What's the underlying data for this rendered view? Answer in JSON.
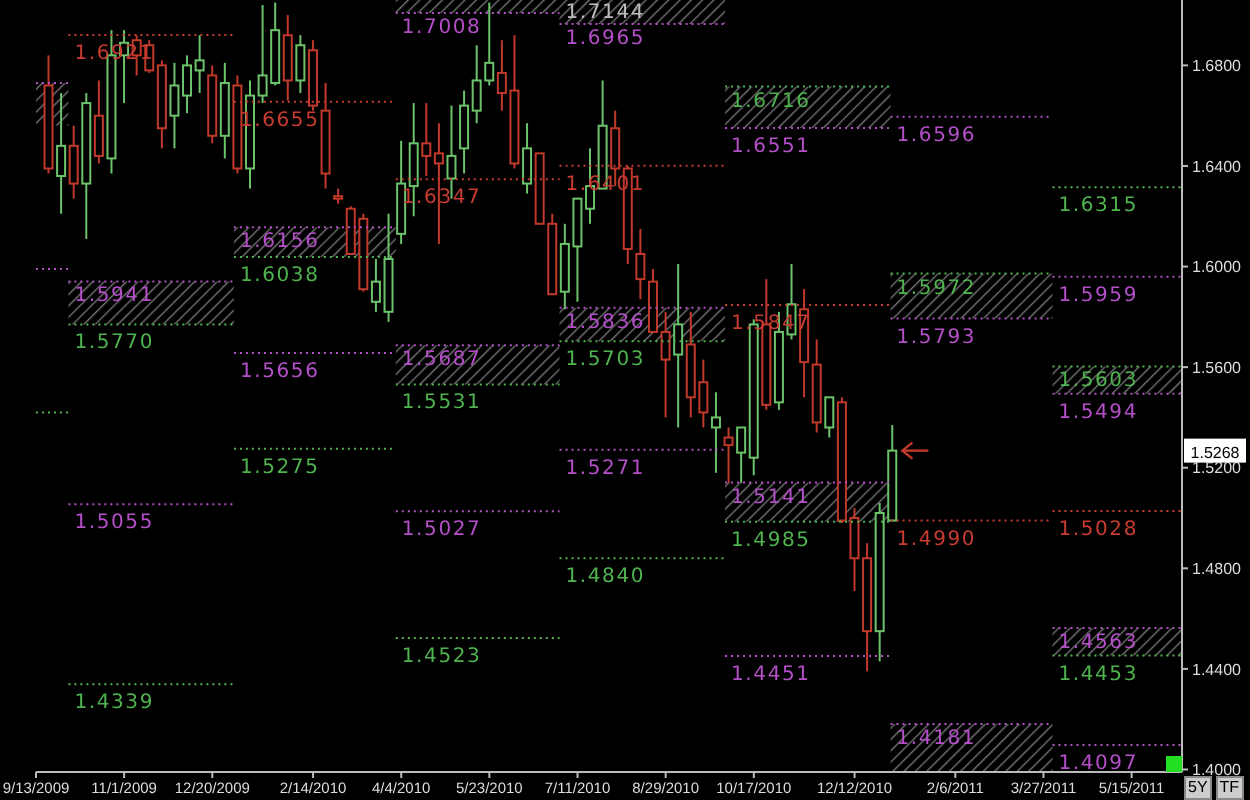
{
  "chart_data": {
    "type": "candlestick",
    "xlim": [
      "2009-09-13",
      "2011-06-12"
    ],
    "ylim": [
      1.399,
      1.706
    ],
    "yticks": [
      {
        "value": 1.4,
        "label": "1.4000"
      },
      {
        "value": 1.44,
        "label": "1.4400"
      },
      {
        "value": 1.48,
        "label": "1.4800"
      },
      {
        "value": 1.52,
        "label": "1.5200"
      },
      {
        "value": 1.56,
        "label": "1.5600"
      },
      {
        "value": 1.6,
        "label": "1.6000"
      },
      {
        "value": 1.64,
        "label": "1.6400"
      },
      {
        "value": 1.68,
        "label": "1.6800"
      }
    ],
    "xticks": [
      {
        "value": "2009-09-13",
        "label": "9/13/2009"
      },
      {
        "value": "2009-11-01",
        "label": "11/1/2009"
      },
      {
        "value": "2009-12-20",
        "label": "12/20/2009"
      },
      {
        "value": "2010-02-14",
        "label": "2/14/2010"
      },
      {
        "value": "2010-04-04",
        "label": "4/4/2010"
      },
      {
        "value": "2010-05-23",
        "label": "5/23/2010"
      },
      {
        "value": "2010-07-11",
        "label": "7/11/2010"
      },
      {
        "value": "2010-08-29",
        "label": "8/29/2010"
      },
      {
        "value": "2010-10-17",
        "label": "10/17/2010"
      },
      {
        "value": "2010-12-12",
        "label": "12/12/2010"
      },
      {
        "value": "2011-02-06",
        "label": "2/6/2011"
      },
      {
        "value": "2011-03-27",
        "label": "3/27/2011"
      },
      {
        "value": "2011-05-15",
        "label": "5/15/2011"
      }
    ],
    "grid": false,
    "annotations": [
      {
        "text": "1.5268",
        "y": 1.5268
      },
      {
        "text": "1.7144",
        "x": "2010-07-01",
        "y": 1.706
      },
      "5Y",
      "TF"
    ],
    "series": [
      {
        "type": "line",
        "x": [
          "2009-09-13",
          "2009-10-01"
        ],
        "values": [
          1.673,
          1.673
        ],
        "lower": [
          1.656,
          1.656
        ],
        "upper": [
          1.673,
          1.673
        ],
        "color": "#b44fc8",
        "line_style": "dotted"
      },
      {
        "type": "line",
        "x": [
          "2009-09-13",
          "2009-10-01"
        ],
        "values": [
          1.599,
          1.599
        ],
        "color": "#b44fc8",
        "line_style": "dotted"
      },
      {
        "type": "line",
        "x": [
          "2009-09-13",
          "2009-10-01"
        ],
        "values": [
          1.542,
          1.542
        ],
        "color": "#4fb44f",
        "line_style": "dotted"
      },
      {
        "type": "line",
        "name": "1.6921",
        "x": [
          "2009-10-01",
          "2010-01-01"
        ],
        "values": [
          1.6921,
          1.6921
        ],
        "color": "#c83c32",
        "line_style": "dotted"
      },
      {
        "type": "line",
        "name": "1.5941",
        "x": [
          "2009-10-01",
          "2010-01-01"
        ],
        "values": [
          1.5941,
          1.5941
        ],
        "lower": [
          1.577,
          1.577
        ],
        "upper": [
          1.5941,
          1.5941
        ],
        "color": "#b44fc8",
        "line_style": "dotted"
      },
      {
        "type": "line",
        "name": "1.5770",
        "x": [
          "2009-10-01",
          "2010-01-01"
        ],
        "values": [
          1.577,
          1.577
        ],
        "color": "#4fb44f",
        "line_style": "dotted"
      },
      {
        "type": "line",
        "name": "1.5055",
        "x": [
          "2009-10-01",
          "2010-01-01"
        ],
        "values": [
          1.5055,
          1.5055
        ],
        "color": "#b44fc8",
        "line_style": "dotted"
      },
      {
        "type": "line",
        "name": "1.4339",
        "x": [
          "2009-10-01",
          "2010-01-01"
        ],
        "values": [
          1.4339,
          1.4339
        ],
        "color": "#4fb44f",
        "line_style": "dotted"
      },
      {
        "type": "line",
        "name": "1.6655",
        "x": [
          "2010-01-01",
          "2010-04-01"
        ],
        "values": [
          1.6655,
          1.6655
        ],
        "color": "#c83c32",
        "line_style": "dotted"
      },
      {
        "type": "line",
        "name": "1.6156",
        "x": [
          "2010-01-01",
          "2010-04-01"
        ],
        "values": [
          1.6156,
          1.6156
        ],
        "lower": [
          1.6038,
          1.6038
        ],
        "upper": [
          1.6156,
          1.6156
        ],
        "color": "#b44fc8",
        "line_style": "dotted"
      },
      {
        "type": "line",
        "name": "1.6038",
        "x": [
          "2010-01-01",
          "2010-04-01"
        ],
        "values": [
          1.6038,
          1.6038
        ],
        "color": "#4fb44f",
        "line_style": "dotted"
      },
      {
        "type": "line",
        "name": "1.5656",
        "x": [
          "2010-01-01",
          "2010-04-01"
        ],
        "values": [
          1.5656,
          1.5656
        ],
        "color": "#b44fc8",
        "line_style": "dotted"
      },
      {
        "type": "line",
        "name": "1.5275",
        "x": [
          "2010-01-01",
          "2010-04-01"
        ],
        "values": [
          1.5275,
          1.5275
        ],
        "color": "#4fb44f",
        "line_style": "dotted"
      },
      {
        "type": "line",
        "name": "1.7008",
        "x": [
          "2010-04-01",
          "2010-07-01"
        ],
        "values": [
          1.7008,
          1.7008
        ],
        "lower": [
          1.7008,
          1.7008
        ],
        "upper": [
          1.706,
          1.706
        ],
        "color": "#b44fc8",
        "line_style": "dotted"
      },
      {
        "type": "line",
        "name": "1.6347",
        "x": [
          "2010-04-01",
          "2010-07-01"
        ],
        "values": [
          1.6347,
          1.6347
        ],
        "color": "#c83c32",
        "line_style": "dotted"
      },
      {
        "type": "line",
        "name": "1.5687",
        "x": [
          "2010-04-01",
          "2010-07-01"
        ],
        "values": [
          1.5687,
          1.5687
        ],
        "lower": [
          1.5531,
          1.5531
        ],
        "upper": [
          1.5687,
          1.5687
        ],
        "color": "#b44fc8",
        "line_style": "dotted"
      },
      {
        "type": "line",
        "name": "1.5531",
        "x": [
          "2010-04-01",
          "2010-07-01"
        ],
        "values": [
          1.5531,
          1.5531
        ],
        "color": "#4fb44f",
        "line_style": "dotted"
      },
      {
        "type": "line",
        "name": "1.5027",
        "x": [
          "2010-04-01",
          "2010-07-01"
        ],
        "values": [
          1.5027,
          1.5027
        ],
        "color": "#b44fc8",
        "line_style": "dotted"
      },
      {
        "type": "line",
        "name": "1.4523",
        "x": [
          "2010-04-01",
          "2010-07-01"
        ],
        "values": [
          1.4523,
          1.4523
        ],
        "color": "#4fb44f",
        "line_style": "dotted"
      },
      {
        "type": "line",
        "name": "1.6965",
        "x": [
          "2010-07-01",
          "2010-10-01"
        ],
        "values": [
          1.6965,
          1.6965
        ],
        "lower": [
          1.6965,
          1.6965
        ],
        "upper": [
          1.706,
          1.706
        ],
        "color": "#b44fc8",
        "line_style": "dotted"
      },
      {
        "type": "line",
        "name": "1.6401",
        "x": [
          "2010-07-01",
          "2010-10-01"
        ],
        "values": [
          1.6401,
          1.6401
        ],
        "color": "#c83c32",
        "line_style": "dotted"
      },
      {
        "type": "line",
        "name": "1.5836",
        "x": [
          "2010-07-01",
          "2010-10-01"
        ],
        "values": [
          1.5836,
          1.5836
        ],
        "lower": [
          1.5703,
          1.5703
        ],
        "upper": [
          1.5836,
          1.5836
        ],
        "color": "#b44fc8",
        "line_style": "dotted"
      },
      {
        "type": "line",
        "name": "1.5703",
        "x": [
          "2010-07-01",
          "2010-10-01"
        ],
        "values": [
          1.5703,
          1.5703
        ],
        "color": "#4fb44f",
        "line_style": "dotted"
      },
      {
        "type": "line",
        "name": "1.5271",
        "x": [
          "2010-07-01",
          "2010-10-01"
        ],
        "values": [
          1.5271,
          1.5271
        ],
        "color": "#b44fc8",
        "line_style": "dotted"
      },
      {
        "type": "line",
        "name": "1.4840",
        "x": [
          "2010-07-01",
          "2010-10-01"
        ],
        "values": [
          1.484,
          1.484
        ],
        "color": "#4fb44f",
        "line_style": "dotted"
      },
      {
        "type": "line",
        "name": "1.6716",
        "x": [
          "2010-10-01",
          "2011-01-01"
        ],
        "values": [
          1.6716,
          1.6716
        ],
        "lower": [
          1.6551,
          1.6551
        ],
        "upper": [
          1.6716,
          1.6716
        ],
        "color": "#4fb44f",
        "line_style": "dotted"
      },
      {
        "type": "line",
        "name": "1.6551",
        "x": [
          "2010-10-01",
          "2011-01-01"
        ],
        "values": [
          1.6551,
          1.6551
        ],
        "color": "#b44fc8",
        "line_style": "dotted"
      },
      {
        "type": "line",
        "name": "1.5847",
        "x": [
          "2010-10-01",
          "2011-01-01"
        ],
        "values": [
          1.5847,
          1.5847
        ],
        "color": "#c83c32",
        "line_style": "dotted"
      },
      {
        "type": "line",
        "name": "1.5141",
        "x": [
          "2010-10-01",
          "2011-01-01"
        ],
        "values": [
          1.5141,
          1.5141
        ],
        "lower": [
          1.4985,
          1.4985
        ],
        "upper": [
          1.5141,
          1.5141
        ],
        "color": "#b44fc8",
        "line_style": "dotted"
      },
      {
        "type": "line",
        "name": "1.4985",
        "x": [
          "2010-10-01",
          "2011-01-01"
        ],
        "values": [
          1.4985,
          1.4985
        ],
        "color": "#4fb44f",
        "line_style": "dotted"
      },
      {
        "type": "line",
        "name": "1.4451",
        "x": [
          "2010-10-01",
          "2011-01-01"
        ],
        "values": [
          1.4451,
          1.4451
        ],
        "color": "#b44fc8",
        "line_style": "dotted"
      },
      {
        "type": "line",
        "name": "1.6596",
        "x": [
          "2011-01-01",
          "2011-04-01"
        ],
        "values": [
          1.6596,
          1.6596
        ],
        "color": "#b44fc8",
        "line_style": "dotted"
      },
      {
        "type": "line",
        "name": "1.5972",
        "x": [
          "2011-01-01",
          "2011-04-01"
        ],
        "values": [
          1.5972,
          1.5972
        ],
        "lower": [
          1.5793,
          1.5793
        ],
        "upper": [
          1.5972,
          1.5972
        ],
        "color": "#4fb44f",
        "line_style": "dotted"
      },
      {
        "type": "line",
        "name": "1.5793",
        "x": [
          "2011-01-01",
          "2011-04-01"
        ],
        "values": [
          1.5793,
          1.5793
        ],
        "color": "#b44fc8",
        "line_style": "dotted"
      },
      {
        "type": "line",
        "name": "1.4990",
        "x": [
          "2011-01-01",
          "2011-04-01"
        ],
        "values": [
          1.499,
          1.499
        ],
        "color": "#c83c32",
        "line_style": "dotted"
      },
      {
        "type": "line",
        "name": "1.4181",
        "x": [
          "2011-01-01",
          "2011-04-01"
        ],
        "values": [
          1.4181,
          1.4181
        ],
        "lower": [
          1.399,
          1.399
        ],
        "upper": [
          1.4181,
          1.4181
        ],
        "color": "#b44fc8",
        "line_style": "dotted"
      },
      {
        "type": "line",
        "name": "1.6315",
        "x": [
          "2011-04-01",
          "2011-06-12"
        ],
        "values": [
          1.6315,
          1.6315
        ],
        "color": "#4fb44f",
        "line_style": "dotted"
      },
      {
        "type": "line",
        "name": "1.5959",
        "x": [
          "2011-04-01",
          "2011-06-12"
        ],
        "values": [
          1.5959,
          1.5959
        ],
        "color": "#b44fc8",
        "line_style": "dotted"
      },
      {
        "type": "line",
        "name": "1.5603",
        "x": [
          "2011-04-01",
          "2011-06-12"
        ],
        "values": [
          1.5603,
          1.5603
        ],
        "lower": [
          1.5494,
          1.5494
        ],
        "upper": [
          1.5603,
          1.5603
        ],
        "color": "#4fb44f",
        "line_style": "dotted"
      },
      {
        "type": "line",
        "name": "1.5494",
        "x": [
          "2011-04-01",
          "2011-06-12"
        ],
        "values": [
          1.5494,
          1.5494
        ],
        "color": "#b44fc8",
        "line_style": "dotted"
      },
      {
        "type": "line",
        "name": "1.5028",
        "x": [
          "2011-04-01",
          "2011-06-12"
        ],
        "values": [
          1.5028,
          1.5028
        ],
        "color": "#c83c32",
        "line_style": "dotted"
      },
      {
        "type": "line",
        "name": "1.4563",
        "x": [
          "2011-04-01",
          "2011-06-12"
        ],
        "values": [
          1.4563,
          1.4563
        ],
        "lower": [
          1.4453,
          1.4453
        ],
        "upper": [
          1.4563,
          1.4563
        ],
        "color": "#b44fc8",
        "line_style": "dotted"
      },
      {
        "type": "line",
        "name": "1.4453",
        "x": [
          "2011-04-01",
          "2011-06-12"
        ],
        "values": [
          1.4453,
          1.4453
        ],
        "color": "#4fb44f",
        "line_style": "dotted"
      },
      {
        "type": "line",
        "name": "1.4097",
        "x": [
          "2011-04-01",
          "2011-06-12"
        ],
        "values": [
          1.4097,
          1.4097
        ],
        "color": "#b44fc8",
        "line_style": "dotted"
      },
      {
        "x": [
          "2009-09-20",
          "2009-09-27",
          "2009-10-04",
          "2009-10-11",
          "2009-10-18",
          "2009-10-25",
          "2009-11-01",
          "2009-11-08",
          "2009-11-15",
          "2009-11-22",
          "2009-11-29",
          "2009-12-06",
          "2009-12-13",
          "2009-12-20",
          "2009-12-27",
          "2010-01-03",
          "2010-01-10",
          "2010-01-17",
          "2010-01-24",
          "2010-01-31",
          "2010-02-07",
          "2010-02-14",
          "2010-02-21",
          "2010-02-28",
          "2010-03-07",
          "2010-03-14",
          "2010-03-21",
          "2010-03-28",
          "2010-04-04",
          "2010-04-11",
          "2010-04-18",
          "2010-04-25",
          "2010-05-02",
          "2010-05-09",
          "2010-05-16",
          "2010-05-23",
          "2010-05-30",
          "2010-06-06",
          "2010-06-13",
          "2010-06-20",
          "2010-06-27",
          "2010-07-04",
          "2010-07-11",
          "2010-07-18",
          "2010-07-25",
          "2010-08-01",
          "2010-08-08",
          "2010-08-15",
          "2010-08-22",
          "2010-08-29",
          "2010-09-05",
          "2010-09-12",
          "2010-09-19",
          "2010-09-26",
          "2010-10-03",
          "2010-10-10",
          "2010-10-17",
          "2010-10-24",
          "2010-10-31",
          "2010-11-07",
          "2010-11-14",
          "2010-11-21",
          "2010-11-28",
          "2010-12-05",
          "2010-12-12",
          "2010-12-19",
          "2010-12-26",
          "2011-01-02"
        ],
        "ohlc": [
          [
            1.672,
            1.684,
            1.637,
            1.639
          ],
          [
            1.636,
            1.669,
            1.621,
            1.648
          ],
          [
            1.648,
            1.656,
            1.627,
            1.633
          ],
          [
            1.633,
            1.669,
            1.611,
            1.665
          ],
          [
            1.66,
            1.674,
            1.641,
            1.644
          ],
          [
            1.643,
            1.694,
            1.637,
            1.684
          ],
          [
            1.684,
            1.694,
            1.665,
            1.689
          ],
          [
            1.69,
            1.692,
            1.676,
            1.684
          ],
          [
            1.688,
            1.69,
            1.677,
            1.678
          ],
          [
            1.68,
            1.682,
            1.647,
            1.655
          ],
          [
            1.66,
            1.681,
            1.647,
            1.672
          ],
          [
            1.668,
            1.684,
            1.661,
            1.68
          ],
          [
            1.678,
            1.692,
            1.669,
            1.682
          ],
          [
            1.676,
            1.68,
            1.649,
            1.652
          ],
          [
            1.652,
            1.681,
            1.643,
            1.673
          ],
          [
            1.672,
            1.676,
            1.637,
            1.639
          ],
          [
            1.639,
            1.674,
            1.631,
            1.668
          ],
          [
            1.668,
            1.704,
            1.665,
            1.676
          ],
          [
            1.673,
            1.705,
            1.672,
            1.694
          ],
          [
            1.692,
            1.7,
            1.666,
            1.674
          ],
          [
            1.674,
            1.692,
            1.669,
            1.688
          ],
          [
            1.686,
            1.69,
            1.662,
            1.664
          ],
          [
            1.662,
            1.673,
            1.631,
            1.637
          ],
          [
            1.628,
            1.631,
            1.625,
            1.627
          ],
          [
            1.623,
            1.624,
            1.605,
            1.605
          ],
          [
            1.619,
            1.621,
            1.59,
            1.591
          ],
          [
            1.586,
            1.603,
            1.582,
            1.594
          ],
          [
            1.582,
            1.621,
            1.578,
            1.603
          ],
          [
            1.613,
            1.65,
            1.609,
            1.633
          ],
          [
            1.632,
            1.665,
            1.62,
            1.649
          ],
          [
            1.649,
            1.665,
            1.636,
            1.644
          ],
          [
            1.645,
            1.657,
            1.609,
            1.641
          ],
          [
            1.635,
            1.664,
            1.627,
            1.644
          ],
          [
            1.647,
            1.67,
            1.637,
            1.664
          ],
          [
            1.662,
            1.688,
            1.657,
            1.674
          ],
          [
            1.674,
            1.705,
            1.672,
            1.681
          ],
          [
            1.677,
            1.69,
            1.662,
            1.669
          ],
          [
            1.67,
            1.692,
            1.639,
            1.641
          ],
          [
            1.633,
            1.657,
            1.629,
            1.647
          ],
          [
            1.645,
            1.645,
            1.617,
            1.617
          ],
          [
            1.617,
            1.621,
            1.589,
            1.589
          ],
          [
            1.59,
            1.617,
            1.583,
            1.609
          ],
          [
            1.608,
            1.627,
            1.586,
            1.627
          ],
          [
            1.623,
            1.647,
            1.617,
            1.632
          ],
          [
            1.631,
            1.674,
            1.631,
            1.656
          ],
          [
            1.655,
            1.662,
            1.632,
            1.639
          ],
          [
            1.639,
            1.64,
            1.601,
            1.607
          ],
          [
            1.605,
            1.615,
            1.587,
            1.595
          ],
          [
            1.594,
            1.599,
            1.574,
            1.574
          ],
          [
            1.574,
            1.582,
            1.54,
            1.563
          ],
          [
            1.565,
            1.601,
            1.536,
            1.577
          ],
          [
            1.569,
            1.582,
            1.54,
            1.548
          ],
          [
            1.554,
            1.563,
            1.536,
            1.542
          ],
          [
            1.536,
            1.55,
            1.518,
            1.54
          ],
          [
            1.532,
            1.536,
            1.514,
            1.529
          ],
          [
            1.526,
            1.536,
            1.514,
            1.536
          ],
          [
            1.524,
            1.579,
            1.517,
            1.577
          ],
          [
            1.577,
            1.595,
            1.543,
            1.545
          ],
          [
            1.546,
            1.582,
            1.543,
            1.574
          ],
          [
            1.573,
            1.601,
            1.571,
            1.585
          ],
          [
            1.583,
            1.591,
            1.548,
            1.562
          ],
          [
            1.561,
            1.571,
            1.534,
            1.538
          ],
          [
            1.536,
            1.548,
            1.532,
            1.548
          ],
          [
            1.546,
            1.548,
            1.498,
            1.499
          ],
          [
            1.5,
            1.504,
            1.471,
            1.484
          ],
          [
            1.484,
            1.49,
            1.439,
            1.455
          ],
          [
            1.455,
            1.506,
            1.443,
            1.502
          ],
          [
            1.499,
            1.537,
            1.499,
            1.5268
          ]
        ],
        "colors": [
          "#c0392b",
          "#6cc36c",
          "#c0392b",
          "#6cc36c",
          "#c0392b",
          "#6cc36c",
          "#6cc36c",
          "#c0392b",
          "#c0392b",
          "#c0392b",
          "#6cc36c",
          "#6cc36c",
          "#6cc36c",
          "#c0392b",
          "#6cc36c",
          "#c0392b",
          "#6cc36c",
          "#6cc36c",
          "#6cc36c",
          "#c0392b",
          "#6cc36c",
          "#c0392b",
          "#c0392b",
          "#c0392b",
          "#c0392b",
          "#c0392b",
          "#6cc36c",
          "#6cc36c",
          "#6cc36c",
          "#6cc36c",
          "#c0392b",
          "#c0392b",
          "#6cc36c",
          "#6cc36c",
          "#6cc36c",
          "#6cc36c",
          "#c0392b",
          "#c0392b",
          "#6cc36c",
          "#c0392b",
          "#c0392b",
          "#6cc36c",
          "#6cc36c",
          "#6cc36c",
          "#6cc36c",
          "#c0392b",
          "#c0392b",
          "#c0392b",
          "#c0392b",
          "#c0392b",
          "#6cc36c",
          "#c0392b",
          "#c0392b",
          "#6cc36c",
          "#c0392b",
          "#6cc36c",
          "#6cc36c",
          "#c0392b",
          "#6cc36c",
          "#6cc36c",
          "#c0392b",
          "#c0392b",
          "#6cc36c",
          "#c0392b",
          "#c0392b",
          "#c0392b",
          "#6cc36c",
          "#6cc36c"
        ]
      }
    ]
  }
}
